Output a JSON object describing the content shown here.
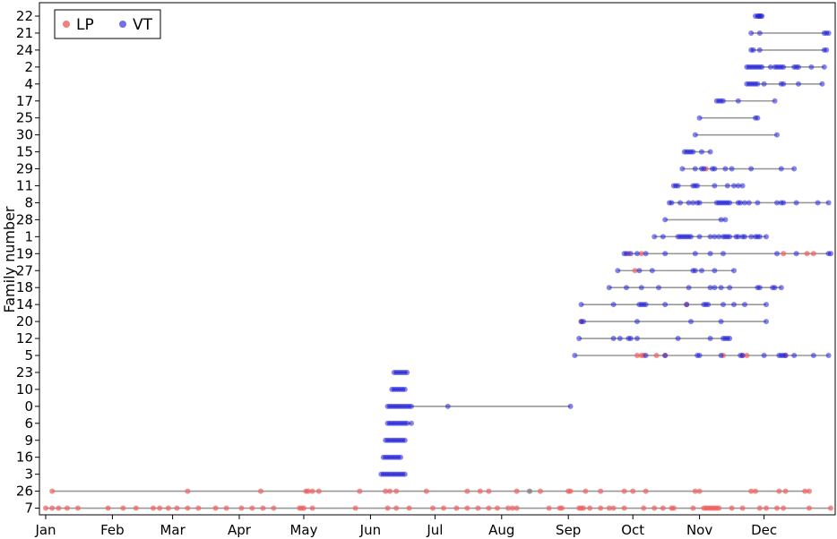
{
  "chart_data": {
    "type": "scatter",
    "title": "",
    "xlabel": "",
    "ylabel": "Family number",
    "xlim": [
      0,
      365
    ],
    "x_ticks": [
      {
        "label": "Jan",
        "value": 0
      },
      {
        "label": "Feb",
        "value": 31
      },
      {
        "label": "Mar",
        "value": 59
      },
      {
        "label": "Apr",
        "value": 90
      },
      {
        "label": "May",
        "value": 120
      },
      {
        "label": "Jun",
        "value": 151
      },
      {
        "label": "Jul",
        "value": 181
      },
      {
        "label": "Aug",
        "value": 212
      },
      {
        "label": "Sep",
        "value": 243
      },
      {
        "label": "Oct",
        "value": 273
      },
      {
        "label": "Nov",
        "value": 304
      },
      {
        "label": "Dec",
        "value": 334
      }
    ],
    "families": [
      "22",
      "21",
      "24",
      "2",
      "4",
      "17",
      "25",
      "30",
      "15",
      "29",
      "11",
      "8",
      "28",
      "1",
      "19",
      "27",
      "18",
      "14",
      "20",
      "12",
      "5",
      "23",
      "10",
      "0",
      "6",
      "9",
      "16",
      "3",
      "26",
      "7"
    ],
    "legend": {
      "placement": "top-left",
      "entries": [
        {
          "name": "LP",
          "color": "#f08080"
        },
        {
          "name": "VT",
          "color": "#7070ee"
        }
      ]
    },
    "series_colors": {
      "LP": "#f06060",
      "VT": "#2020dd",
      "line": "#999999"
    },
    "rows": [
      {
        "family": "22",
        "range": [
          330,
          333
        ],
        "VT": [
          330,
          331,
          331.5,
          332,
          332.5,
          333
        ],
        "LP": []
      },
      {
        "family": "21",
        "range": [
          328,
          364
        ],
        "VT": [
          328,
          332,
          362,
          363,
          364
        ],
        "LP": []
      },
      {
        "family": "24",
        "range": [
          328,
          363
        ],
        "VT": [
          328,
          329,
          332,
          362,
          363
        ],
        "LP": []
      },
      {
        "family": "2",
        "range": [
          326,
          362
        ],
        "VT": [
          326,
          327,
          328,
          329,
          330,
          331,
          332,
          333,
          337,
          339,
          340,
          341,
          342,
          343,
          348,
          349,
          350,
          356,
          362
        ],
        "LP": []
      },
      {
        "family": "4",
        "range": [
          326,
          361
        ],
        "VT": [
          326,
          327,
          328,
          329,
          330,
          331,
          334,
          342,
          343,
          350,
          361
        ],
        "LP": []
      },
      {
        "family": "17",
        "range": [
          312,
          339
        ],
        "VT": [
          312,
          313,
          314,
          315,
          322,
          339
        ],
        "LP": []
      },
      {
        "family": "25",
        "range": [
          304,
          331
        ],
        "VT": [
          304,
          330,
          331
        ],
        "LP": []
      },
      {
        "family": "30",
        "range": [
          302,
          340
        ],
        "VT": [
          302,
          340
        ],
        "LP": []
      },
      {
        "family": "15",
        "range": [
          297,
          309
        ],
        "VT": [
          297,
          298,
          299,
          300,
          301,
          305,
          309
        ],
        "LP": []
      },
      {
        "family": "29",
        "range": [
          296,
          348
        ],
        "VT": [
          296,
          302,
          305,
          306,
          310,
          311,
          316,
          319,
          328,
          342,
          348
        ],
        "LP": [
          307
        ]
      },
      {
        "family": "11",
        "range": [
          292,
          324
        ],
        "VT": [
          292,
          293,
          294,
          301,
          302,
          303,
          311,
          317,
          320,
          322,
          324
        ],
        "LP": []
      },
      {
        "family": "8",
        "range": [
          290,
          364
        ],
        "VT": [
          290,
          291,
          295,
          299,
          301,
          303,
          304,
          312,
          313,
          314,
          315,
          316,
          317,
          318,
          322,
          323,
          325,
          327,
          331,
          340,
          342,
          343,
          349,
          359,
          364
        ],
        "LP": []
      },
      {
        "family": "28",
        "range": [
          288,
          316
        ],
        "VT": [
          288,
          314,
          316
        ],
        "LP": []
      },
      {
        "family": "1",
        "range": [
          283,
          335
        ],
        "VT": [
          283,
          287,
          294,
          295,
          296,
          297,
          298,
          299,
          300,
          304,
          309,
          311,
          313,
          315,
          316,
          317,
          318,
          321,
          322,
          324,
          325,
          328,
          330,
          331,
          332,
          335
        ],
        "LP": []
      },
      {
        "family": "19",
        "range": [
          269,
          365
        ],
        "VT": [
          269,
          270,
          272,
          275,
          279,
          288,
          302,
          309,
          315,
          340,
          349,
          364,
          365
        ],
        "LP": [
          271,
          277,
          343,
          354,
          357
        ]
      },
      {
        "family": "27",
        "range": [
          266,
          320
        ],
        "VT": [
          266,
          276,
          282,
          301,
          302,
          305,
          311,
          320
        ],
        "LP": [
          274
        ]
      },
      {
        "family": "18",
        "range": [
          262,
          342
        ],
        "VT": [
          262,
          270,
          277,
          285,
          299,
          309,
          311,
          314,
          318,
          331,
          332,
          338,
          339,
          342
        ],
        "LP": []
      },
      {
        "family": "14",
        "range": [
          249,
          335
        ],
        "VT": [
          249,
          264,
          276,
          277,
          278,
          279,
          288,
          298,
          306,
          307,
          308,
          315,
          320,
          325,
          335
        ],
        "LP": [
          298
        ]
      },
      {
        "family": "20",
        "range": [
          249,
          335
        ],
        "VT": [
          249,
          250,
          275,
          300,
          314,
          335
        ],
        "LP": [
          249
        ]
      },
      {
        "family": "12",
        "range": [
          248,
          318
        ],
        "VT": [
          248,
          264,
          267,
          271,
          272,
          275,
          294,
          309,
          315,
          316,
          317,
          318
        ],
        "LP": []
      },
      {
        "family": "5",
        "range": [
          246,
          364
        ],
        "VT": [
          246,
          279,
          288,
          303,
          304,
          314,
          323,
          324,
          334,
          341,
          342,
          343,
          344,
          348,
          357,
          364
        ],
        "LP": [
          275,
          277,
          278,
          284,
          288,
          315,
          324,
          326,
          344
        ]
      },
      {
        "family": "23",
        "range": [
          162,
          168
        ],
        "VT": [
          162,
          163,
          164,
          165,
          166,
          167,
          168
        ],
        "LP": []
      },
      {
        "family": "10",
        "range": [
          161,
          167
        ],
        "VT": [
          161,
          162,
          163,
          164,
          165,
          166,
          167
        ],
        "LP": []
      },
      {
        "family": "0",
        "range": [
          159,
          244
        ],
        "VT": [
          159,
          160,
          161,
          162,
          163,
          164,
          165,
          166,
          167,
          168,
          169,
          170,
          187,
          244
        ],
        "LP": []
      },
      {
        "family": "6",
        "range": [
          159,
          170
        ],
        "VT": [
          159,
          160,
          161,
          162,
          163,
          164,
          165,
          166,
          167,
          168,
          170
        ],
        "LP": []
      },
      {
        "family": "9",
        "range": [
          158,
          167
        ],
        "VT": [
          158,
          159,
          160,
          161,
          162,
          163,
          164,
          165,
          166,
          167
        ],
        "LP": []
      },
      {
        "family": "16",
        "range": [
          157,
          165
        ],
        "VT": [
          157,
          158,
          159,
          160,
          161,
          162,
          163,
          164,
          165
        ],
        "LP": []
      },
      {
        "family": "3",
        "range": [
          156,
          167
        ],
        "VT": [
          156,
          157,
          158,
          159,
          160,
          161,
          162,
          163,
          164,
          165,
          166,
          167
        ],
        "LP": []
      },
      {
        "family": "26",
        "range": [
          3,
          355
        ],
        "VT": [],
        "LP": [
          3,
          66,
          100,
          121,
          122,
          124,
          127,
          146,
          158,
          160,
          163,
          177,
          196,
          202,
          206,
          219,
          230,
          243,
          244,
          251,
          258,
          269,
          273,
          279,
          302,
          304,
          328,
          330,
          341,
          344,
          353,
          355
        ],
        "MIX": [
          225
        ]
      },
      {
        "family": "7",
        "range": [
          0,
          365
        ],
        "VT": [],
        "LP": [
          0,
          3,
          6,
          10,
          15,
          29,
          36,
          42,
          50,
          53,
          57,
          61,
          66,
          71,
          79,
          84,
          91,
          96,
          101,
          106,
          118,
          119,
          120,
          124,
          144,
          159,
          163,
          169,
          180,
          185,
          191,
          196,
          201,
          206,
          210,
          215,
          217,
          219,
          234,
          239,
          240,
          248,
          249,
          250,
          253,
          258,
          262,
          264,
          269,
          278,
          283,
          287,
          291,
          292,
          301,
          306,
          307,
          308,
          309,
          310,
          311,
          312,
          313,
          319,
          324,
          332,
          335,
          340,
          343,
          355,
          365
        ]
      }
    ]
  }
}
